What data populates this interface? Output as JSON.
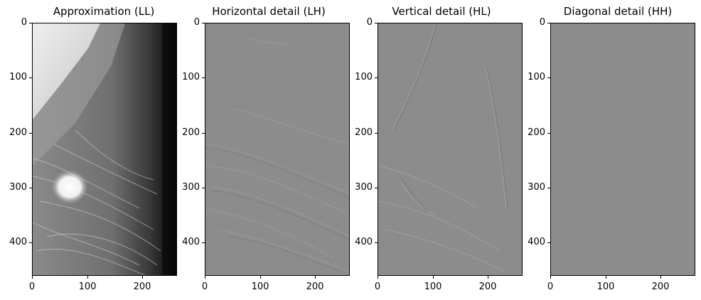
{
  "panels": [
    {
      "title": "Approximation (LL)",
      "band": "LL"
    },
    {
      "title": "Horizontal detail (LH)",
      "band": "LH"
    },
    {
      "title": "Vertical detail (HL)",
      "band": "HL"
    },
    {
      "title": "Diagonal detail (HH)",
      "band": "HH"
    }
  ],
  "y_ticks": [
    "0",
    "100",
    "200",
    "300",
    "400"
  ],
  "x_ticks": [
    "0",
    "100",
    "200"
  ],
  "colors": {
    "detail_gray": "#8c8c8c",
    "background": "#ffffff",
    "axis": "#000000"
  }
}
